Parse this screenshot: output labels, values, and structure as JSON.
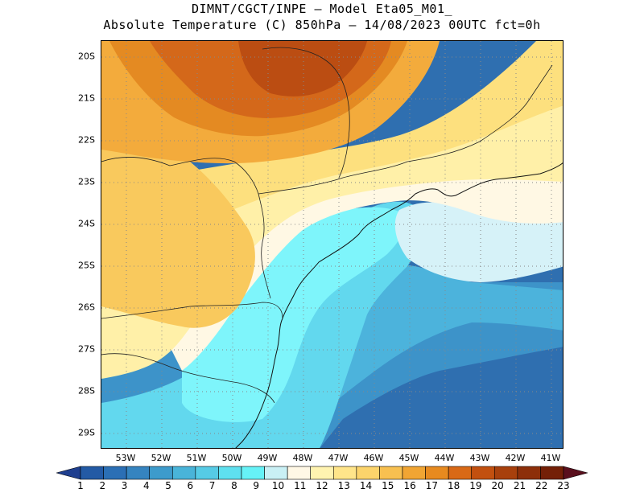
{
  "header": {
    "line1": "DIMNT/CGCT/INPE –  Model Eta05_M01_",
    "line2": "Absolute Temperature (C) 850hPa –  14/08/2023 00UTC fct=0h"
  },
  "axes": {
    "lat_labels": [
      "20S",
      "21S",
      "22S",
      "23S",
      "24S",
      "25S",
      "26S",
      "27S",
      "28S",
      "29S"
    ],
    "lon_labels": [
      "53W",
      "52W",
      "51W",
      "50W",
      "49W",
      "48W",
      "47W",
      "46W",
      "45W",
      "44W",
      "43W",
      "42W",
      "41W"
    ]
  },
  "colorbar": {
    "labels": [
      "1",
      "2",
      "3",
      "4",
      "5",
      "6",
      "7",
      "8",
      "9",
      "10",
      "11",
      "12",
      "13",
      "14",
      "15",
      "16",
      "17",
      "18",
      "19",
      "20",
      "21",
      "22",
      "23"
    ],
    "colors": [
      "#1f3f8f",
      "#235aa5",
      "#2b6fb5",
      "#3584c0",
      "#3d9bcc",
      "#49b4d9",
      "#56cbe6",
      "#5ee0ef",
      "#66f2f7",
      "#c9f0f5",
      "#fff8e6",
      "#fff3b0",
      "#ffe58a",
      "#fcd46b",
      "#f8c050",
      "#f1a533",
      "#e78a1f",
      "#d96916",
      "#c2500f",
      "#a8400c",
      "#8d2f0a",
      "#742007",
      "#5a0f1d"
    ]
  },
  "map": {
    "grid": "dotted",
    "colors": {
      "deep_blue": "#2f6fb0",
      "blue": "#3d93c9",
      "light_blue": "#4cb3dc",
      "cyan": "#62d8ee",
      "bright_cyan": "#7ef5fb",
      "pale_blue": "#d6f2f8",
      "cream": "#fff8e4",
      "pale_yellow": "#fff0a8",
      "yellow": "#fde07e",
      "light_orange": "#f9c95d",
      "orange": "#f3ab3c",
      "dark_orange": "#e48a22",
      "red_orange": "#d4681a",
      "brown": "#bb4d12"
    }
  }
}
